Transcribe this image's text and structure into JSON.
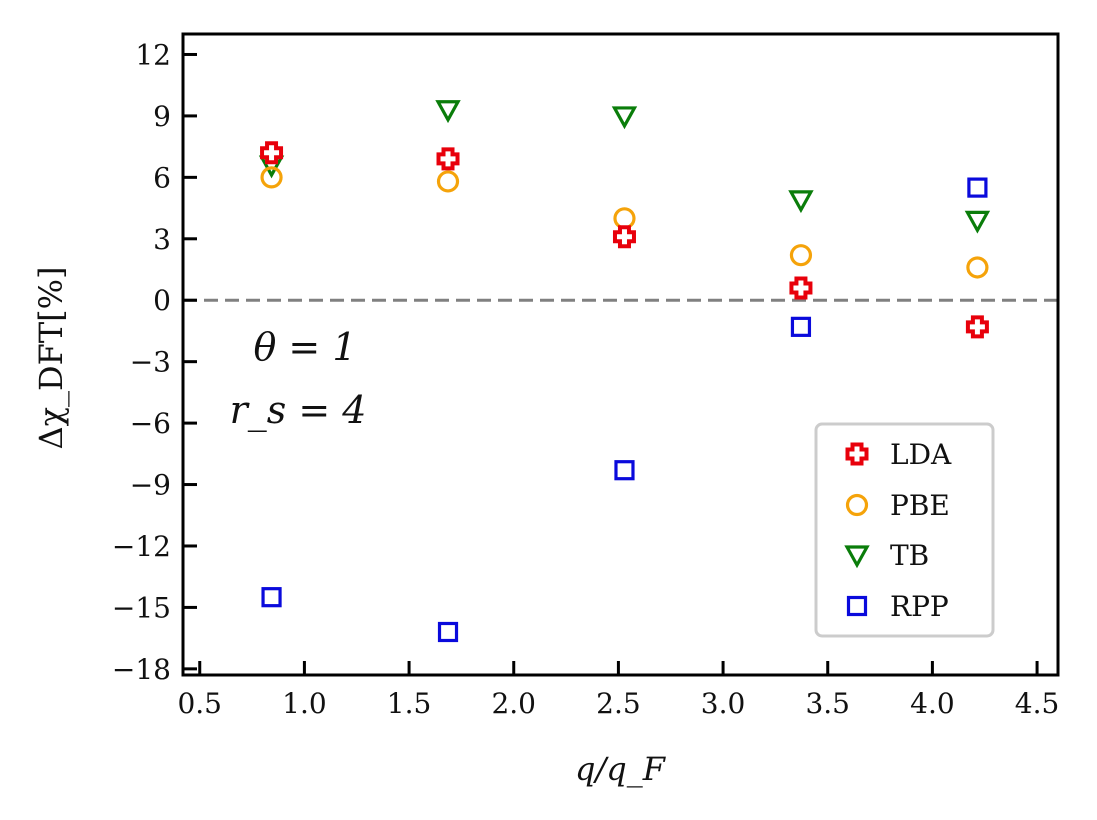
{
  "chart_data": {
    "type": "scatter",
    "title": "",
    "xlabel": "q/q_F",
    "ylabel": "Δχ_DFT[%]",
    "xlim": [
      0.42,
      4.6
    ],
    "ylim": [
      -18.3,
      13
    ],
    "xticks": [
      0.5,
      1.0,
      1.5,
      2.0,
      2.5,
      3.0,
      3.5,
      4.0,
      4.5
    ],
    "xtick_labels": [
      "0.5",
      "1.0",
      "1.5",
      "2.0",
      "2.5",
      "3.0",
      "3.5",
      "4.0",
      "4.5"
    ],
    "yticks": [
      12,
      9,
      6,
      3,
      0,
      -3,
      -6,
      -9,
      -12,
      -15,
      -18
    ],
    "ytick_labels": [
      "12",
      "9",
      "6",
      "3",
      "0",
      "−3",
      "−6",
      "−9",
      "−12",
      "−15",
      "−18"
    ],
    "reference_line": 0,
    "grid": false,
    "legend_position": "bottom-right",
    "annotations": [
      "θ = 1",
      "r_s = 4"
    ],
    "x": [
      0.843,
      1.686,
      2.529,
      3.372,
      4.215
    ],
    "series": [
      {
        "name": "LDA",
        "marker": "plus",
        "color": "#e8000b",
        "values": [
          7.2,
          6.9,
          3.1,
          0.6,
          -1.3
        ]
      },
      {
        "name": "PBE",
        "marker": "circle",
        "color": "#f5a30a",
        "values": [
          6.0,
          5.8,
          4.0,
          2.2,
          1.6
        ]
      },
      {
        "name": "TB",
        "marker": "triangle-down",
        "color": "#0a7d0a",
        "values": [
          6.6,
          9.3,
          9.0,
          4.9,
          3.9
        ]
      },
      {
        "name": "RPP",
        "marker": "square",
        "color": "#0a0adc",
        "values": [
          -14.5,
          -16.2,
          -8.3,
          -1.3,
          5.5
        ]
      }
    ]
  }
}
